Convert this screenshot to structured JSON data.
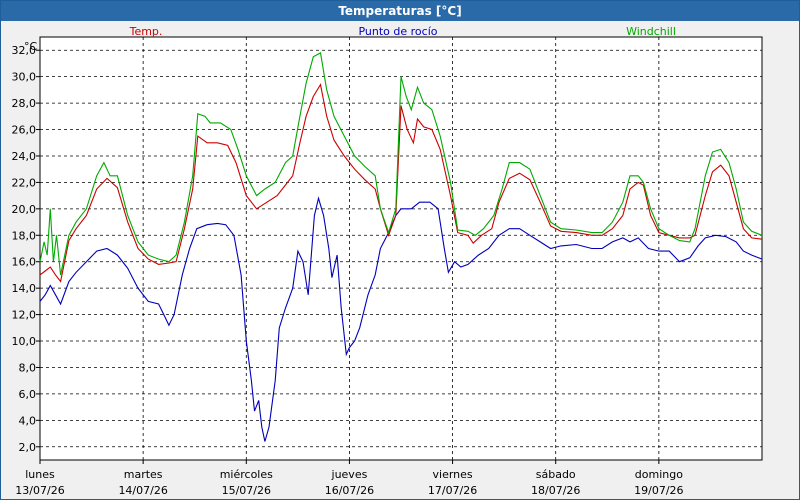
{
  "window": {
    "title": "Temperaturas [°C]"
  },
  "chart_data": {
    "type": "line",
    "ylabel": "°C",
    "ylim": [
      1,
      33
    ],
    "yticks": [
      2.0,
      4.0,
      6.0,
      8.0,
      10.0,
      12.0,
      14.0,
      16.0,
      18.0,
      20.0,
      22.0,
      24.0,
      26.0,
      28.0,
      30.0,
      32.0
    ],
    "ytick_labels": [
      "2,0",
      "4,0",
      "6,0",
      "8,0",
      "10,0",
      "12,0",
      "14,0",
      "16,0",
      "18,0",
      "20,0",
      "22,0",
      "24,0",
      "26,0",
      "28,0",
      "30,0",
      "32,0"
    ],
    "xlim": [
      0,
      7
    ],
    "grid": true,
    "legend_placement": "top",
    "days": [
      {
        "name": "lunes",
        "date": "13/07/26"
      },
      {
        "name": "martes",
        "date": "14/07/26"
      },
      {
        "name": "miércoles",
        "date": "15/07/26"
      },
      {
        "name": "jueves",
        "date": "16/07/26"
      },
      {
        "name": "viernes",
        "date": "17/07/26"
      },
      {
        "name": "sábado",
        "date": "18/07/26"
      },
      {
        "name": "domingo",
        "date": "19/07/26"
      }
    ],
    "series": [
      {
        "name": "Temp.",
        "color": "#cc0000",
        "points": [
          [
            0.0,
            15.0
          ],
          [
            0.05,
            15.3
          ],
          [
            0.1,
            15.6
          ],
          [
            0.15,
            15.0
          ],
          [
            0.2,
            14.5
          ],
          [
            0.28,
            17.6
          ],
          [
            0.35,
            18.5
          ],
          [
            0.45,
            19.5
          ],
          [
            0.55,
            21.5
          ],
          [
            0.65,
            22.3
          ],
          [
            0.75,
            21.6
          ],
          [
            0.85,
            19.0
          ],
          [
            0.95,
            17.0
          ],
          [
            1.05,
            16.2
          ],
          [
            1.15,
            15.8
          ],
          [
            1.25,
            15.9
          ],
          [
            1.32,
            16.0
          ],
          [
            1.4,
            18.5
          ],
          [
            1.48,
            21.5
          ],
          [
            1.53,
            25.5
          ],
          [
            1.62,
            25.0
          ],
          [
            1.72,
            25.0
          ],
          [
            1.82,
            24.8
          ],
          [
            1.9,
            23.5
          ],
          [
            2.0,
            21.0
          ],
          [
            2.1,
            20.0
          ],
          [
            2.2,
            20.5
          ],
          [
            2.3,
            21.0
          ],
          [
            2.4,
            22.0
          ],
          [
            2.45,
            22.5
          ],
          [
            2.52,
            25.0
          ],
          [
            2.58,
            27.0
          ],
          [
            2.65,
            28.5
          ],
          [
            2.72,
            29.4
          ],
          [
            2.78,
            27.0
          ],
          [
            2.85,
            25.2
          ],
          [
            2.95,
            24.0
          ],
          [
            3.05,
            23.0
          ],
          [
            3.15,
            22.2
          ],
          [
            3.25,
            21.5
          ],
          [
            3.3,
            20.0
          ],
          [
            3.38,
            18.0
          ],
          [
            3.45,
            19.5
          ],
          [
            3.5,
            27.8
          ],
          [
            3.56,
            26.0
          ],
          [
            3.62,
            25.0
          ],
          [
            3.66,
            26.8
          ],
          [
            3.72,
            26.2
          ],
          [
            3.8,
            26.0
          ],
          [
            3.88,
            24.5
          ],
          [
            3.98,
            21.0
          ],
          [
            4.05,
            18.2
          ],
          [
            4.15,
            18.0
          ],
          [
            4.2,
            17.4
          ],
          [
            4.28,
            18.0
          ],
          [
            4.38,
            18.5
          ],
          [
            4.45,
            20.5
          ],
          [
            4.55,
            22.3
          ],
          [
            4.65,
            22.7
          ],
          [
            4.75,
            22.2
          ],
          [
            4.85,
            20.5
          ],
          [
            4.95,
            18.7
          ],
          [
            5.05,
            18.3
          ],
          [
            5.2,
            18.2
          ],
          [
            5.35,
            18.0
          ],
          [
            5.45,
            18.0
          ],
          [
            5.55,
            18.5
          ],
          [
            5.65,
            19.5
          ],
          [
            5.72,
            21.5
          ],
          [
            5.8,
            22.0
          ],
          [
            5.85,
            21.8
          ],
          [
            5.92,
            19.5
          ],
          [
            6.0,
            18.2
          ],
          [
            6.1,
            18.0
          ],
          [
            6.2,
            17.8
          ],
          [
            6.3,
            17.8
          ],
          [
            6.35,
            18.0
          ],
          [
            6.45,
            21.0
          ],
          [
            6.52,
            22.8
          ],
          [
            6.6,
            23.3
          ],
          [
            6.68,
            22.5
          ],
          [
            6.75,
            20.5
          ],
          [
            6.82,
            18.5
          ],
          [
            6.9,
            17.8
          ],
          [
            7.0,
            17.7
          ]
        ]
      },
      {
        "name": "Punto de rocío",
        "color": "#0000bb",
        "points": [
          [
            0.0,
            13.0
          ],
          [
            0.05,
            13.5
          ],
          [
            0.1,
            14.2
          ],
          [
            0.15,
            13.5
          ],
          [
            0.2,
            12.8
          ],
          [
            0.28,
            14.5
          ],
          [
            0.35,
            15.2
          ],
          [
            0.45,
            16.0
          ],
          [
            0.55,
            16.8
          ],
          [
            0.65,
            17.0
          ],
          [
            0.75,
            16.5
          ],
          [
            0.85,
            15.5
          ],
          [
            0.95,
            14.0
          ],
          [
            1.05,
            13.0
          ],
          [
            1.15,
            12.8
          ],
          [
            1.2,
            12.0
          ],
          [
            1.25,
            11.2
          ],
          [
            1.3,
            12.0
          ],
          [
            1.38,
            15.0
          ],
          [
            1.45,
            17.0
          ],
          [
            1.52,
            18.5
          ],
          [
            1.62,
            18.8
          ],
          [
            1.72,
            18.9
          ],
          [
            1.8,
            18.8
          ],
          [
            1.88,
            18.0
          ],
          [
            1.95,
            15.0
          ],
          [
            2.0,
            10.0
          ],
          [
            2.05,
            7.0
          ],
          [
            2.08,
            4.7
          ],
          [
            2.12,
            5.5
          ],
          [
            2.15,
            3.5
          ],
          [
            2.18,
            2.4
          ],
          [
            2.22,
            3.5
          ],
          [
            2.28,
            7.0
          ],
          [
            2.32,
            11.0
          ],
          [
            2.38,
            12.5
          ],
          [
            2.45,
            14.0
          ],
          [
            2.5,
            16.8
          ],
          [
            2.55,
            16.0
          ],
          [
            2.6,
            13.5
          ],
          [
            2.66,
            19.5
          ],
          [
            2.7,
            20.8
          ],
          [
            2.75,
            19.5
          ],
          [
            2.8,
            17.0
          ],
          [
            2.83,
            14.8
          ],
          [
            2.88,
            16.5
          ],
          [
            2.92,
            12.5
          ],
          [
            2.97,
            9.0
          ],
          [
            3.0,
            9.5
          ],
          [
            3.05,
            10.0
          ],
          [
            3.1,
            11.0
          ],
          [
            3.18,
            13.5
          ],
          [
            3.25,
            15.0
          ],
          [
            3.3,
            17.0
          ],
          [
            3.38,
            18.2
          ],
          [
            3.45,
            19.5
          ],
          [
            3.5,
            20.0
          ],
          [
            3.6,
            20.0
          ],
          [
            3.68,
            20.5
          ],
          [
            3.78,
            20.5
          ],
          [
            3.86,
            20.0
          ],
          [
            3.92,
            17.0
          ],
          [
            3.96,
            15.2
          ],
          [
            4.02,
            16.0
          ],
          [
            4.08,
            15.6
          ],
          [
            4.15,
            15.8
          ],
          [
            4.25,
            16.5
          ],
          [
            4.35,
            17.0
          ],
          [
            4.45,
            18.0
          ],
          [
            4.55,
            18.5
          ],
          [
            4.65,
            18.5
          ],
          [
            4.75,
            18.0
          ],
          [
            4.85,
            17.5
          ],
          [
            4.95,
            17.0
          ],
          [
            5.05,
            17.2
          ],
          [
            5.2,
            17.3
          ],
          [
            5.35,
            17.0
          ],
          [
            5.45,
            17.0
          ],
          [
            5.55,
            17.5
          ],
          [
            5.65,
            17.8
          ],
          [
            5.72,
            17.5
          ],
          [
            5.8,
            17.8
          ],
          [
            5.9,
            17.0
          ],
          [
            6.0,
            16.8
          ],
          [
            6.1,
            16.8
          ],
          [
            6.2,
            16.0
          ],
          [
            6.3,
            16.3
          ],
          [
            6.38,
            17.2
          ],
          [
            6.45,
            17.8
          ],
          [
            6.55,
            18.0
          ],
          [
            6.65,
            17.9
          ],
          [
            6.75,
            17.5
          ],
          [
            6.82,
            16.8
          ],
          [
            6.9,
            16.5
          ],
          [
            7.0,
            16.2
          ]
        ]
      },
      {
        "name": "Windchill",
        "color": "#00aa00",
        "points": [
          [
            0.0,
            16.0
          ],
          [
            0.04,
            17.5
          ],
          [
            0.07,
            16.5
          ],
          [
            0.1,
            20.0
          ],
          [
            0.13,
            16.0
          ],
          [
            0.16,
            18.0
          ],
          [
            0.2,
            15.0
          ],
          [
            0.28,
            18.0
          ],
          [
            0.35,
            19.0
          ],
          [
            0.45,
            20.0
          ],
          [
            0.55,
            22.5
          ],
          [
            0.62,
            23.5
          ],
          [
            0.68,
            22.5
          ],
          [
            0.75,
            22.5
          ],
          [
            0.85,
            19.5
          ],
          [
            0.95,
            17.5
          ],
          [
            1.05,
            16.5
          ],
          [
            1.15,
            16.2
          ],
          [
            1.25,
            16.0
          ],
          [
            1.32,
            16.5
          ],
          [
            1.4,
            19.0
          ],
          [
            1.48,
            22.5
          ],
          [
            1.53,
            27.2
          ],
          [
            1.6,
            27.0
          ],
          [
            1.65,
            26.5
          ],
          [
            1.75,
            26.5
          ],
          [
            1.85,
            26.0
          ],
          [
            1.92,
            24.5
          ],
          [
            2.0,
            22.5
          ],
          [
            2.1,
            21.0
          ],
          [
            2.18,
            21.5
          ],
          [
            2.28,
            22.0
          ],
          [
            2.38,
            23.5
          ],
          [
            2.45,
            24.0
          ],
          [
            2.52,
            27.0
          ],
          [
            2.58,
            29.5
          ],
          [
            2.65,
            31.5
          ],
          [
            2.72,
            31.8
          ],
          [
            2.78,
            29.0
          ],
          [
            2.85,
            27.0
          ],
          [
            2.95,
            25.5
          ],
          [
            3.05,
            24.0
          ],
          [
            3.15,
            23.2
          ],
          [
            3.25,
            22.5
          ],
          [
            3.3,
            20.0
          ],
          [
            3.38,
            18.2
          ],
          [
            3.45,
            20.0
          ],
          [
            3.5,
            30.0
          ],
          [
            3.55,
            28.5
          ],
          [
            3.6,
            27.5
          ],
          [
            3.66,
            29.2
          ],
          [
            3.72,
            28.0
          ],
          [
            3.8,
            27.5
          ],
          [
            3.88,
            25.5
          ],
          [
            3.98,
            22.0
          ],
          [
            4.05,
            18.4
          ],
          [
            4.15,
            18.3
          ],
          [
            4.22,
            18.0
          ],
          [
            4.3,
            18.5
          ],
          [
            4.4,
            19.5
          ],
          [
            4.48,
            21.5
          ],
          [
            4.55,
            23.5
          ],
          [
            4.65,
            23.5
          ],
          [
            4.75,
            23.0
          ],
          [
            4.85,
            21.0
          ],
          [
            4.95,
            19.0
          ],
          [
            5.05,
            18.5
          ],
          [
            5.2,
            18.4
          ],
          [
            5.35,
            18.2
          ],
          [
            5.45,
            18.2
          ],
          [
            5.55,
            19.0
          ],
          [
            5.65,
            20.5
          ],
          [
            5.72,
            22.5
          ],
          [
            5.8,
            22.5
          ],
          [
            5.85,
            22.0
          ],
          [
            5.92,
            20.0
          ],
          [
            6.0,
            18.5
          ],
          [
            6.1,
            18.0
          ],
          [
            6.2,
            17.6
          ],
          [
            6.3,
            17.5
          ],
          [
            6.35,
            18.5
          ],
          [
            6.45,
            22.5
          ],
          [
            6.52,
            24.3
          ],
          [
            6.6,
            24.5
          ],
          [
            6.68,
            23.5
          ],
          [
            6.75,
            21.5
          ],
          [
            6.82,
            19.0
          ],
          [
            6.9,
            18.3
          ],
          [
            7.0,
            18.0
          ]
        ]
      }
    ]
  }
}
